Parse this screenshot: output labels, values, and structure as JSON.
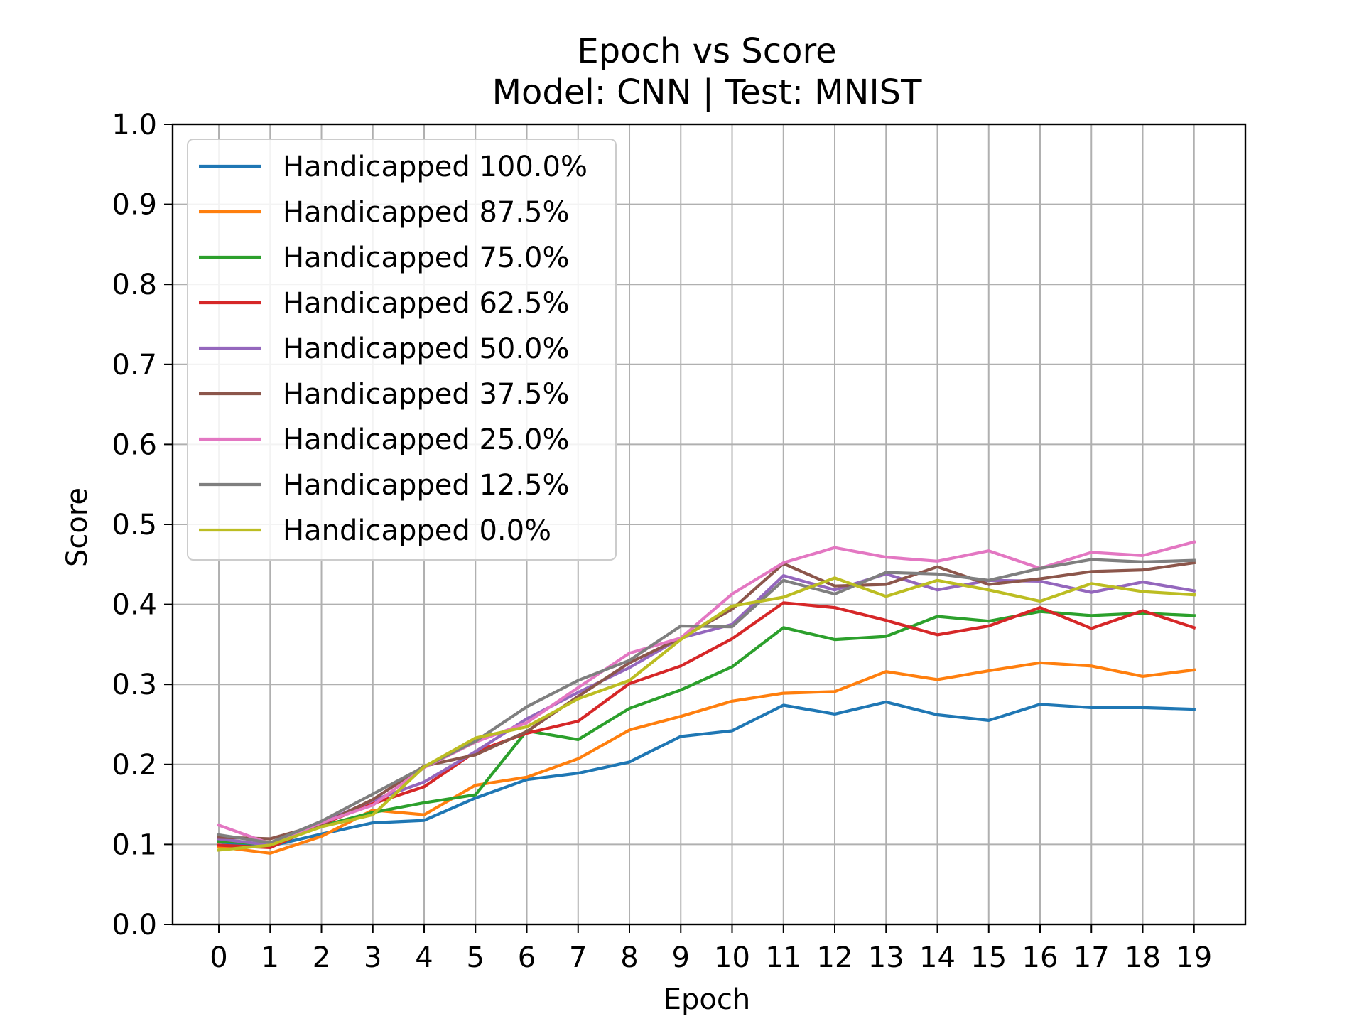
{
  "chart_data": {
    "type": "line",
    "title": "Epoch vs Score",
    "subtitle": "Model: CNN | Test: MNIST",
    "xlabel": "Epoch",
    "ylabel": "Score",
    "ylim": [
      0.0,
      1.0
    ],
    "xlim": [
      -0.9,
      20.0
    ],
    "grid": true,
    "legend_position": "top-left",
    "x": [
      0,
      1,
      2,
      3,
      4,
      5,
      6,
      7,
      8,
      9,
      10,
      11,
      12,
      13,
      14,
      15,
      16,
      17,
      18,
      19
    ],
    "x_ticks": [
      "0",
      "1",
      "2",
      "3",
      "4",
      "5",
      "6",
      "7",
      "8",
      "9",
      "10",
      "11",
      "12",
      "13",
      "14",
      "15",
      "16",
      "17",
      "18",
      "19"
    ],
    "y_ticks": [
      "0.0",
      "0.1",
      "0.2",
      "0.3",
      "0.4",
      "0.5",
      "0.6",
      "0.7",
      "0.8",
      "0.9",
      "1.0"
    ],
    "series": [
      {
        "name": "Handicapped 100.0%",
        "color": "#1f77b4",
        "values": [
          0.103,
          0.098,
          0.113,
          0.127,
          0.13,
          0.158,
          0.181,
          0.189,
          0.203,
          0.235,
          0.242,
          0.274,
          0.263,
          0.278,
          0.262,
          0.255,
          0.275,
          0.271,
          0.271,
          0.269
        ]
      },
      {
        "name": "Handicapped 87.5%",
        "color": "#ff7f0e",
        "values": [
          0.097,
          0.089,
          0.11,
          0.143,
          0.137,
          0.174,
          0.184,
          0.207,
          0.243,
          0.26,
          0.279,
          0.289,
          0.291,
          0.316,
          0.306,
          0.317,
          0.327,
          0.323,
          0.31,
          0.318
        ]
      },
      {
        "name": "Handicapped 75.0%",
        "color": "#2ca02c",
        "values": [
          0.104,
          0.1,
          0.123,
          0.14,
          0.152,
          0.162,
          0.242,
          0.231,
          0.27,
          0.293,
          0.322,
          0.371,
          0.356,
          0.36,
          0.385,
          0.379,
          0.391,
          0.386,
          0.389,
          0.386
        ]
      },
      {
        "name": "Handicapped 62.5%",
        "color": "#d62728",
        "values": [
          0.099,
          0.096,
          0.125,
          0.151,
          0.172,
          0.216,
          0.239,
          0.254,
          0.301,
          0.323,
          0.357,
          0.402,
          0.396,
          0.38,
          0.362,
          0.373,
          0.396,
          0.37,
          0.392,
          0.371
        ]
      },
      {
        "name": "Handicapped 50.0%",
        "color": "#9467bd",
        "values": [
          0.107,
          0.099,
          0.127,
          0.155,
          0.178,
          0.216,
          0.257,
          0.29,
          0.321,
          0.358,
          0.375,
          0.436,
          0.418,
          0.438,
          0.418,
          0.43,
          0.429,
          0.415,
          0.428,
          0.417
        ]
      },
      {
        "name": "Handicapped 37.5%",
        "color": "#8c564b",
        "values": [
          0.109,
          0.107,
          0.125,
          0.156,
          0.198,
          0.212,
          0.241,
          0.285,
          0.327,
          0.358,
          0.394,
          0.451,
          0.423,
          0.425,
          0.447,
          0.425,
          0.432,
          0.441,
          0.443,
          0.452
        ]
      },
      {
        "name": "Handicapped 25.0%",
        "color": "#e377c2",
        "values": [
          0.124,
          0.101,
          0.127,
          0.149,
          0.196,
          0.228,
          0.252,
          0.296,
          0.339,
          0.358,
          0.413,
          0.452,
          0.471,
          0.459,
          0.454,
          0.467,
          0.445,
          0.465,
          0.461,
          0.478
        ]
      },
      {
        "name": "Handicapped 12.5%",
        "color": "#7f7f7f",
        "values": [
          0.112,
          0.102,
          0.129,
          0.163,
          0.197,
          0.229,
          0.272,
          0.305,
          0.33,
          0.373,
          0.372,
          0.43,
          0.413,
          0.44,
          0.438,
          0.43,
          0.445,
          0.456,
          0.453,
          0.455
        ]
      },
      {
        "name": "Handicapped 0.0%",
        "color": "#bcbd22",
        "values": [
          0.093,
          0.099,
          0.122,
          0.137,
          0.197,
          0.233,
          0.247,
          0.282,
          0.305,
          0.356,
          0.398,
          0.409,
          0.433,
          0.41,
          0.43,
          0.418,
          0.404,
          0.426,
          0.416,
          0.412
        ]
      }
    ]
  }
}
